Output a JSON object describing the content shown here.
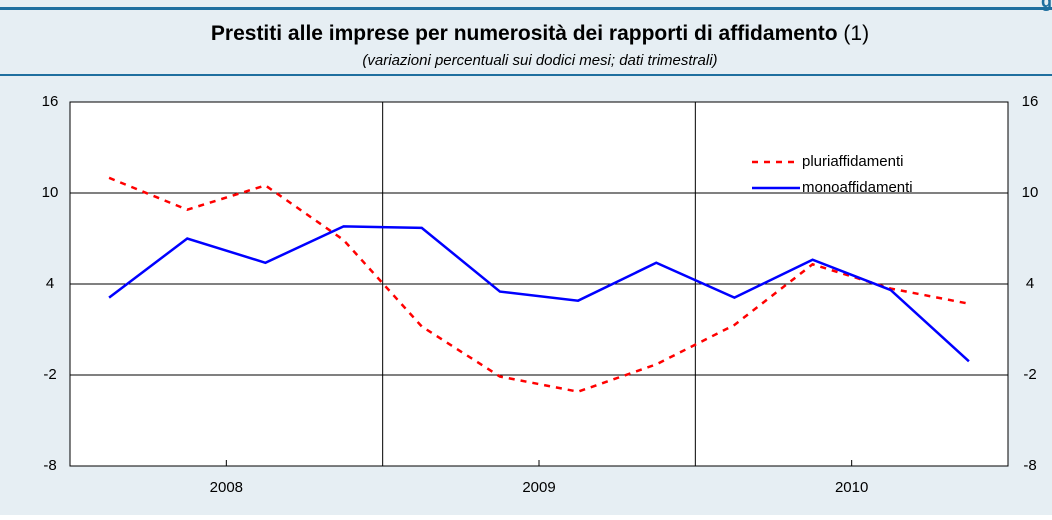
{
  "header": {
    "text": "g"
  },
  "chart_data": {
    "type": "line",
    "title": "Prestiti alle imprese per numerosità dei rapporti di affidamento",
    "title_note": "(1)",
    "subtitle": "(variazioni percentuali sui dodici mesi; dati trimestrali)",
    "years": [
      "2008",
      "2009",
      "2010"
    ],
    "series": [
      {
        "name": "pluriaffidamenti",
        "color": "#ff0000",
        "dashed": true,
        "values": [
          11.0,
          8.9,
          10.5,
          6.9,
          1.2,
          -2.1,
          -3.1,
          -1.3,
          1.3,
          5.3,
          3.7,
          2.7
        ]
      },
      {
        "name": "monoaffidamenti",
        "color": "#0000ff",
        "dashed": false,
        "values": [
          3.1,
          7.0,
          5.4,
          7.8,
          7.7,
          3.5,
          2.9,
          5.4,
          3.1,
          5.6,
          3.6,
          -1.1
        ]
      }
    ],
    "ylim": [
      -8,
      16
    ],
    "yticks": [
      -8,
      -2,
      4,
      10,
      16
    ],
    "grid": true,
    "legend": "upper right"
  }
}
